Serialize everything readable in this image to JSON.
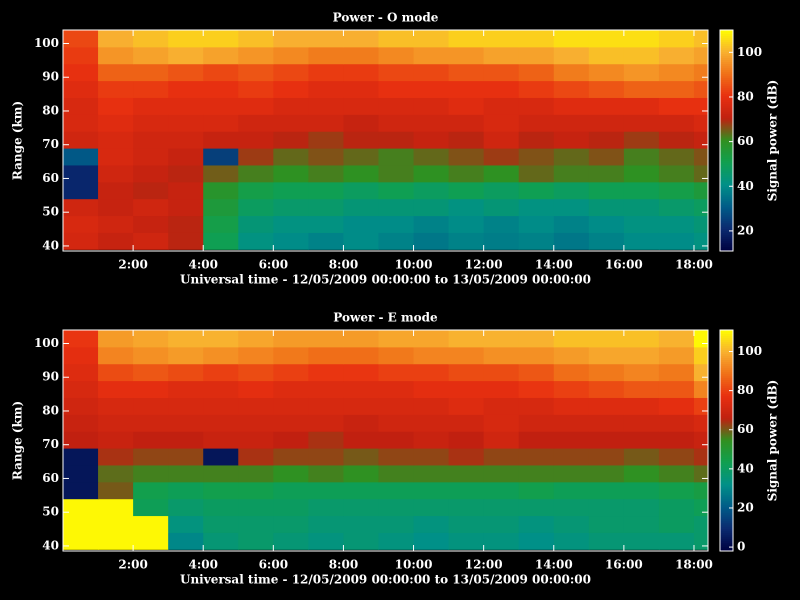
{
  "chart_data": [
    {
      "type": "heatmap",
      "title": "Power - O mode",
      "xlabel": "Universal time - 12/05/2009 00:00:00 to 13/05/2009 00:00:00",
      "ylabel": "Range (km)",
      "colorbar_label": "Signal power (dB)",
      "xbins": [
        0,
        1,
        2,
        3,
        4,
        5,
        6,
        7,
        8,
        9,
        10,
        11,
        12,
        13,
        14,
        15,
        16,
        17,
        18,
        18.4
      ],
      "ybins": [
        39,
        44,
        49,
        54,
        59,
        64,
        69,
        74,
        79,
        84,
        89,
        94,
        99,
        104
      ],
      "xlim": [
        0,
        18.4
      ],
      "ylim": [
        38.5,
        104
      ],
      "xticks": [
        {
          "value": 2,
          "label": "2:00"
        },
        {
          "value": 4,
          "label": "4:00"
        },
        {
          "value": 6,
          "label": "6:00"
        },
        {
          "value": 8,
          "label": "8:00"
        },
        {
          "value": 10,
          "label": "10:00"
        },
        {
          "value": 12,
          "label": "12:00"
        },
        {
          "value": 14,
          "label": "14:00"
        },
        {
          "value": 16,
          "label": "16:00"
        },
        {
          "value": 18,
          "label": "18:00"
        }
      ],
      "yticks": [
        40,
        50,
        60,
        70,
        80,
        90,
        100
      ],
      "clim": [
        11,
        110
      ],
      "cticks": [
        20,
        40,
        60,
        80,
        100
      ],
      "colormap": [
        "#000040",
        "#0a2a70",
        "#005c88",
        "#009088",
        "#10a050",
        "#309020",
        "#c02010",
        "#e83010",
        "#f07018",
        "#f8b030",
        "#ffff00"
      ],
      "z": [
        [
          75,
          72,
          74,
          70,
          50,
          42,
          40,
          38,
          40,
          38,
          36,
          38,
          37,
          38,
          36,
          38,
          40,
          40,
          42
        ],
        [
          76,
          74,
          72,
          70,
          52,
          44,
          42,
          42,
          40,
          40,
          38,
          40,
          38,
          40,
          38,
          40,
          42,
          42,
          44
        ],
        [
          74,
          72,
          74,
          72,
          55,
          48,
          46,
          46,
          44,
          44,
          44,
          42,
          44,
          42,
          42,
          44,
          44,
          46,
          48
        ],
        [
          20,
          72,
          70,
          72,
          58,
          52,
          50,
          50,
          48,
          50,
          48,
          50,
          48,
          50,
          48,
          50,
          50,
          52,
          55
        ],
        [
          20,
          74,
          72,
          70,
          65,
          62,
          60,
          62,
          60,
          62,
          60,
          62,
          60,
          64,
          62,
          62,
          60,
          62,
          64
        ],
        [
          30,
          76,
          74,
          72,
          25,
          68,
          64,
          66,
          64,
          62,
          64,
          66,
          68,
          66,
          64,
          66,
          62,
          64,
          66
        ],
        [
          74,
          76,
          74,
          74,
          72,
          72,
          70,
          68,
          70,
          70,
          72,
          70,
          74,
          70,
          72,
          70,
          68,
          70,
          72
        ],
        [
          76,
          78,
          76,
          76,
          76,
          74,
          74,
          74,
          72,
          74,
          74,
          74,
          76,
          74,
          74,
          74,
          74,
          74,
          76
        ],
        [
          76,
          80,
          78,
          78,
          78,
          78,
          76,
          76,
          76,
          76,
          76,
          78,
          76,
          76,
          78,
          78,
          78,
          80,
          80
        ],
        [
          78,
          82,
          82,
          80,
          80,
          82,
          80,
          78,
          78,
          80,
          80,
          80,
          80,
          82,
          84,
          86,
          88,
          88,
          86
        ],
        [
          80,
          88,
          88,
          86,
          84,
          86,
          84,
          82,
          82,
          84,
          84,
          86,
          86,
          88,
          92,
          94,
          96,
          94,
          92
        ],
        [
          82,
          96,
          98,
          100,
          98,
          96,
          94,
          92,
          92,
          94,
          96,
          96,
          98,
          98,
          100,
          102,
          102,
          100,
          98
        ],
        [
          84,
          100,
          102,
          104,
          104,
          102,
          100,
          100,
          100,
          102,
          102,
          104,
          104,
          104,
          106,
          106,
          106,
          104,
          102
        ]
      ]
    },
    {
      "type": "heatmap",
      "title": "Power - E mode",
      "xlabel": "Universal time - 12/05/2009 00:00:00 to 13/05/2009 00:00:00",
      "ylabel": "Range (km)",
      "colorbar_label": "Signal power (dB)",
      "xbins": [
        0,
        1,
        2,
        3,
        4,
        5,
        6,
        7,
        8,
        9,
        10,
        11,
        12,
        13,
        14,
        15,
        16,
        17,
        18,
        18.4
      ],
      "ybins": [
        39,
        44,
        49,
        54,
        59,
        64,
        69,
        74,
        79,
        84,
        89,
        94,
        99,
        104
      ],
      "xlim": [
        0,
        18.4
      ],
      "ylim": [
        38.5,
        104
      ],
      "xticks": [
        {
          "value": 2,
          "label": "2:00"
        },
        {
          "value": 4,
          "label": "4:00"
        },
        {
          "value": 6,
          "label": "6:00"
        },
        {
          "value": 8,
          "label": "8:00"
        },
        {
          "value": 10,
          "label": "10:00"
        },
        {
          "value": 12,
          "label": "12:00"
        },
        {
          "value": 14,
          "label": "14:00"
        },
        {
          "value": 16,
          "label": "16:00"
        },
        {
          "value": 18,
          "label": "18:00"
        }
      ],
      "yticks": [
        40,
        50,
        60,
        70,
        80,
        90,
        100
      ],
      "clim": [
        -2,
        111
      ],
      "cticks": [
        0,
        20,
        40,
        60,
        80,
        100
      ],
      "colormap": [
        "#000040",
        "#0a2a70",
        "#005c88",
        "#009088",
        "#10a050",
        "#309020",
        "#c02010",
        "#e83010",
        "#f07018",
        "#f8b030",
        "#ffff00"
      ],
      "z": [
        [
          110,
          110,
          110,
          30,
          36,
          38,
          36,
          34,
          36,
          34,
          32,
          34,
          34,
          32,
          34,
          36,
          36,
          36,
          38
        ],
        [
          110,
          110,
          110,
          34,
          38,
          38,
          38,
          36,
          36,
          36,
          34,
          36,
          36,
          34,
          36,
          38,
          38,
          40,
          38
        ],
        [
          110,
          110,
          42,
          38,
          40,
          40,
          40,
          38,
          38,
          38,
          38,
          38,
          38,
          38,
          38,
          38,
          38,
          40,
          42
        ],
        [
          4,
          60,
          44,
          42,
          44,
          44,
          42,
          42,
          42,
          42,
          42,
          42,
          42,
          44,
          42,
          42,
          42,
          44,
          46
        ],
        [
          4,
          58,
          56,
          56,
          56,
          56,
          54,
          56,
          54,
          56,
          56,
          56,
          56,
          56,
          56,
          56,
          54,
          56,
          58
        ],
        [
          4,
          64,
          62,
          62,
          4,
          64,
          62,
          62,
          60,
          62,
          62,
          64,
          62,
          62,
          62,
          62,
          60,
          62,
          64
        ],
        [
          66,
          68,
          66,
          66,
          68,
          68,
          66,
          64,
          66,
          66,
          68,
          66,
          70,
          66,
          66,
          66,
          66,
          66,
          68
        ],
        [
          68,
          70,
          70,
          70,
          70,
          70,
          70,
          70,
          68,
          70,
          70,
          70,
          72,
          70,
          70,
          70,
          70,
          70,
          72
        ],
        [
          70,
          72,
          72,
          72,
          72,
          72,
          72,
          72,
          72,
          72,
          72,
          74,
          72,
          72,
          74,
          74,
          74,
          76,
          80
        ],
        [
          72,
          76,
          76,
          74,
          74,
          76,
          74,
          74,
          74,
          74,
          76,
          76,
          76,
          78,
          80,
          82,
          84,
          84,
          92
        ],
        [
          74,
          82,
          84,
          82,
          80,
          82,
          80,
          78,
          78,
          80,
          80,
          82,
          82,
          84,
          88,
          90,
          92,
          90,
          100
        ],
        [
          76,
          92,
          94,
          96,
          94,
          92,
          90,
          88,
          88,
          90,
          92,
          92,
          94,
          94,
          96,
          98,
          98,
          96,
          104
        ],
        [
          78,
          96,
          98,
          100,
          100,
          98,
          96,
          96,
          96,
          98,
          98,
          100,
          100,
          100,
          102,
          102,
          102,
          100,
          110
        ]
      ]
    }
  ]
}
